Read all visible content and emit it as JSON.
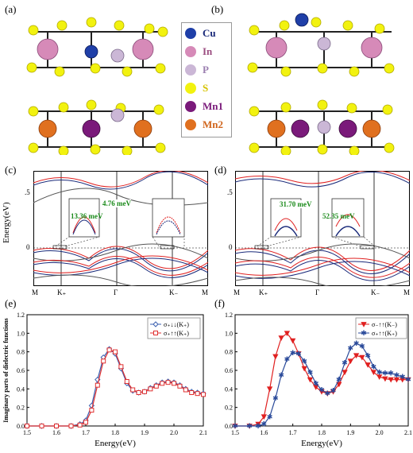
{
  "panels": {
    "a": "(a)",
    "b": "(b)",
    "c": "(c)",
    "d": "(d)",
    "e": "(e)",
    "f": "(f)"
  },
  "legend": [
    {
      "label": "Cu",
      "color": "#1f3fa8",
      "text_color": "#1a2a7a"
    },
    {
      "label": "In",
      "color": "#d68ab8",
      "text_color": "#9b4d80"
    },
    {
      "label": "P",
      "color": "#cbb7d6",
      "text_color": "#9b7fb0"
    },
    {
      "label": "S",
      "color": "#f2f20f",
      "text_color": "#d6c300"
    },
    {
      "label": "Mn1",
      "color": "#7a1a7a",
      "text_color": "#7a1a7a"
    },
    {
      "label": "Mn2",
      "color": "#e0701f",
      "text_color": "#d0651c"
    }
  ],
  "band_c": {
    "ylabel": "Energy(eV)",
    "yticks": [
      ".5",
      "0"
    ],
    "xticks": [
      "M",
      "K₊",
      "Γ",
      "K₋",
      "M"
    ],
    "ann1": "4.76 meV",
    "ann2": "13.36 meV"
  },
  "band_d": {
    "yticks": [
      ".5",
      "0"
    ],
    "xticks": [
      "M",
      "K₊",
      "Γ",
      "K₋",
      "M"
    ],
    "ann1": "31.70 meV",
    "ann2": "52.35 meV"
  },
  "chart_data": [
    {
      "type": "line",
      "panel": "e",
      "xlabel": "Energy(eV)",
      "ylabel": "Imaginary parts of dielectric functions",
      "xlim": [
        1.5,
        2.1
      ],
      "ylim": [
        0.0,
        1.2
      ],
      "xticks": [
        "1.5",
        "1.6",
        "1.7",
        "1.8",
        "1.9",
        "2.0",
        "2.1"
      ],
      "yticks": [
        "0.0",
        "0.2",
        "0.4",
        "0.6",
        "0.8",
        "1.0",
        "1.2"
      ],
      "x": [
        1.5,
        1.55,
        1.6,
        1.65,
        1.68,
        1.7,
        1.72,
        1.74,
        1.76,
        1.78,
        1.8,
        1.82,
        1.84,
        1.86,
        1.88,
        1.9,
        1.92,
        1.94,
        1.96,
        1.98,
        2.0,
        2.02,
        2.04,
        2.06,
        2.08,
        2.1
      ],
      "series": [
        {
          "name": "σ₊↓↓(K₊)",
          "color": "#3a5fb0",
          "marker": "diamond",
          "values": [
            0.0,
            0.0,
            0.0,
            0.0,
            0.02,
            0.06,
            0.22,
            0.5,
            0.74,
            0.83,
            0.78,
            0.62,
            0.46,
            0.38,
            0.36,
            0.37,
            0.41,
            0.44,
            0.47,
            0.48,
            0.47,
            0.44,
            0.4,
            0.37,
            0.36,
            0.35
          ]
        },
        {
          "name": "σ₊↑↑(K₊)",
          "color": "#e03030",
          "marker": "square",
          "values": [
            0.0,
            0.0,
            0.0,
            0.0,
            0.01,
            0.04,
            0.17,
            0.44,
            0.7,
            0.82,
            0.8,
            0.64,
            0.48,
            0.39,
            0.36,
            0.37,
            0.4,
            0.43,
            0.46,
            0.47,
            0.46,
            0.43,
            0.39,
            0.36,
            0.35,
            0.34
          ]
        }
      ]
    },
    {
      "type": "line",
      "panel": "f",
      "xlabel": "Energy(eV)",
      "ylabel": "",
      "xlim": [
        1.5,
        2.1
      ],
      "ylim": [
        0.0,
        1.2
      ],
      "xticks": [
        "1.5",
        "1.6",
        "1.7",
        "1.8",
        "1.9",
        "2.0",
        "2.1"
      ],
      "yticks": [
        "0.0",
        "0.2",
        "0.4",
        "0.6",
        "0.8",
        "1.0",
        "1.2"
      ],
      "x": [
        1.5,
        1.55,
        1.58,
        1.6,
        1.62,
        1.64,
        1.66,
        1.68,
        1.7,
        1.72,
        1.74,
        1.76,
        1.78,
        1.8,
        1.82,
        1.84,
        1.86,
        1.88,
        1.9,
        1.92,
        1.94,
        1.96,
        1.98,
        2.0,
        2.02,
        2.04,
        2.06,
        2.08,
        2.1
      ],
      "series": [
        {
          "name": "σ₋↑↑(K₋)",
          "color": "#e02020",
          "marker": "triangle",
          "values": [
            0.0,
            0.0,
            0.02,
            0.1,
            0.4,
            0.75,
            0.95,
            1.0,
            0.92,
            0.78,
            0.62,
            0.5,
            0.42,
            0.37,
            0.35,
            0.37,
            0.45,
            0.58,
            0.7,
            0.76,
            0.74,
            0.66,
            0.58,
            0.53,
            0.51,
            0.5,
            0.5,
            0.5,
            0.5
          ]
        },
        {
          "name": "σ₊↑↑(K₊)",
          "color": "#2a4a9a",
          "marker": "star",
          "values": [
            0.0,
            0.0,
            0.0,
            0.02,
            0.1,
            0.3,
            0.55,
            0.72,
            0.79,
            0.78,
            0.7,
            0.58,
            0.46,
            0.39,
            0.35,
            0.38,
            0.5,
            0.68,
            0.84,
            0.89,
            0.86,
            0.76,
            0.64,
            0.58,
            0.57,
            0.57,
            0.55,
            0.53,
            0.5
          ]
        }
      ]
    }
  ]
}
